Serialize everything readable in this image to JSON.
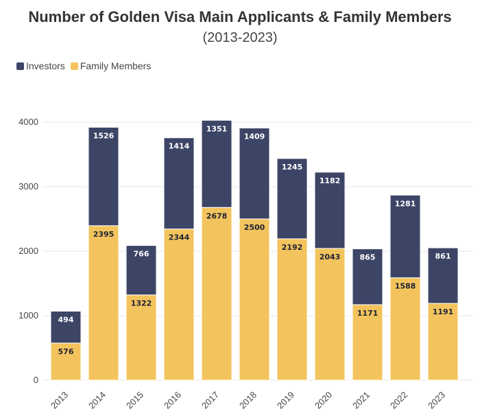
{
  "colors": {
    "investors": "#3d4566",
    "family": "#f3c45d",
    "grid": "#e6e6e6"
  },
  "chart_data": {
    "type": "bar",
    "stacked": true,
    "title": "Number of Golden Visa Main Applicants & Family Members",
    "subtitle": "(2013-2023)",
    "categories": [
      "2013",
      "2014",
      "2015",
      "2016",
      "2017",
      "2018",
      "2019",
      "2020",
      "2021",
      "2022",
      "2023"
    ],
    "series": [
      {
        "name": "Family Members",
        "values": [
          576,
          2395,
          1322,
          2344,
          2678,
          2500,
          2192,
          2043,
          1171,
          1588,
          1191
        ]
      },
      {
        "name": "Investors",
        "values": [
          494,
          1526,
          766,
          1414,
          1351,
          1409,
          1245,
          1182,
          865,
          1281,
          861
        ]
      }
    ],
    "yticks": [
      0,
      1000,
      2000,
      3000,
      4000
    ],
    "ylim": [
      0,
      4000
    ],
    "xlabel": "",
    "ylabel": "",
    "legend": {
      "position": "top-left",
      "items": [
        "Investors",
        "Family Members"
      ]
    }
  }
}
